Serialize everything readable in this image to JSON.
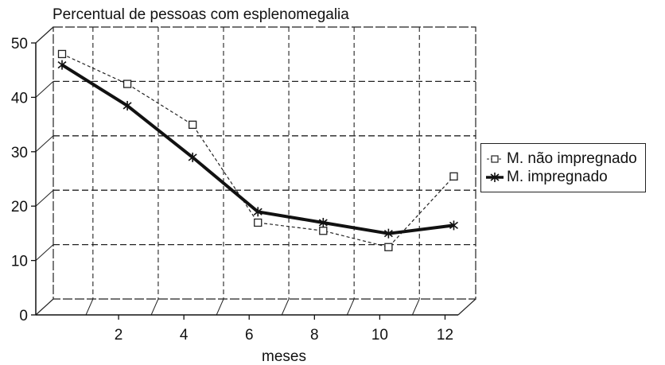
{
  "chart_data": {
    "type": "line",
    "title": "Percentual de pessoas com esplenomegalia",
    "xlabel": "meses",
    "ylabel": "",
    "xlim": [
      0,
      12.5
    ],
    "ylim": [
      0,
      50
    ],
    "x_ticks": [
      2,
      4,
      6,
      8,
      10,
      12
    ],
    "y_ticks": [
      0,
      10,
      20,
      30,
      40,
      50
    ],
    "grid": true,
    "legend_position": "right",
    "series": [
      {
        "name": "M. não impregnado",
        "style": "dashed-thin",
        "marker": "square",
        "color": "#222222",
        "x": [
          0,
          2,
          4,
          6,
          8,
          10,
          12
        ],
        "y": [
          46.5,
          41,
          33.5,
          15.5,
          14,
          11,
          24
        ]
      },
      {
        "name": "M. impregnado",
        "style": "solid-thick",
        "marker": "star",
        "color": "#111111",
        "x": [
          0,
          2,
          4,
          6,
          8,
          10,
          12
        ],
        "y": [
          44.5,
          37,
          27.5,
          17.5,
          15.5,
          13.5,
          15
        ]
      }
    ]
  }
}
